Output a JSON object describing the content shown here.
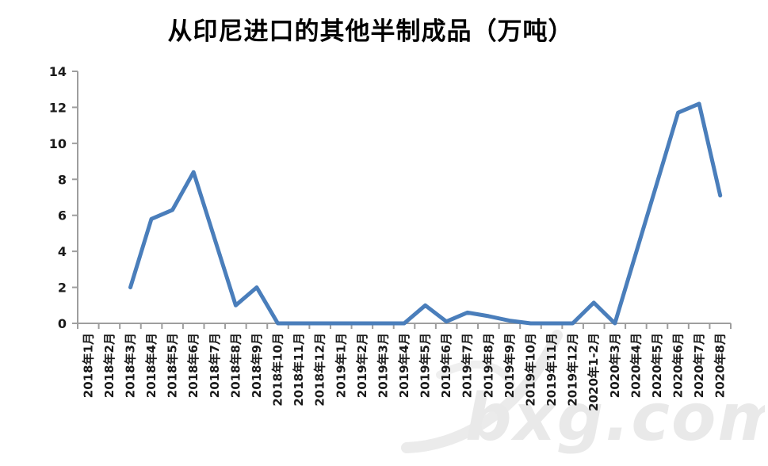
{
  "chart_data": {
    "type": "line",
    "title": "从印尼进口的其他半制成品（万吨）",
    "categories": [
      "2018年1月",
      "2018年2月",
      "2018年3月",
      "2018年4月",
      "2018年5月",
      "2018年6月",
      "2018年7月",
      "2018年8月",
      "2018年9月",
      "2018年10月",
      "2018年11月",
      "2018年12月",
      "2019年1月",
      "2019年2月",
      "2019年3月",
      "2019年4月",
      "2019年5月",
      "2019年6月",
      "2019年7月",
      "2019年8月",
      "2019年9月",
      "2019年10月",
      "2019年11月",
      "2019年12月",
      "2020年1-2月",
      "2020年3月",
      "2020年4月",
      "2020年5月",
      "2020年6月",
      "2020年7月",
      "2020年8月"
    ],
    "values": [
      null,
      null,
      2,
      5.8,
      6.3,
      8.4,
      4.7,
      1,
      2,
      0,
      0,
      0,
      0,
      0,
      0,
      0,
      1,
      0.1,
      0.6,
      0.4,
      0.15,
      0,
      0,
      0,
      1.15,
      0,
      3.9,
      7.8,
      11.7,
      12.2,
      7.1
    ],
    "ytick_labels": [
      "0",
      "2",
      "4",
      "6",
      "8",
      "10",
      "12",
      "14"
    ],
    "ylim": [
      0,
      14
    ],
    "ytick_step": 2,
    "xlabel": "",
    "ylabel": "",
    "grid": false,
    "legend": false,
    "series_color": "#4a7ebb",
    "axis_color": "#9e9e9e",
    "label_color": "#1a1a1a"
  },
  "watermark": {
    "text": "bxg.com",
    "color": "#e9e9e9"
  }
}
